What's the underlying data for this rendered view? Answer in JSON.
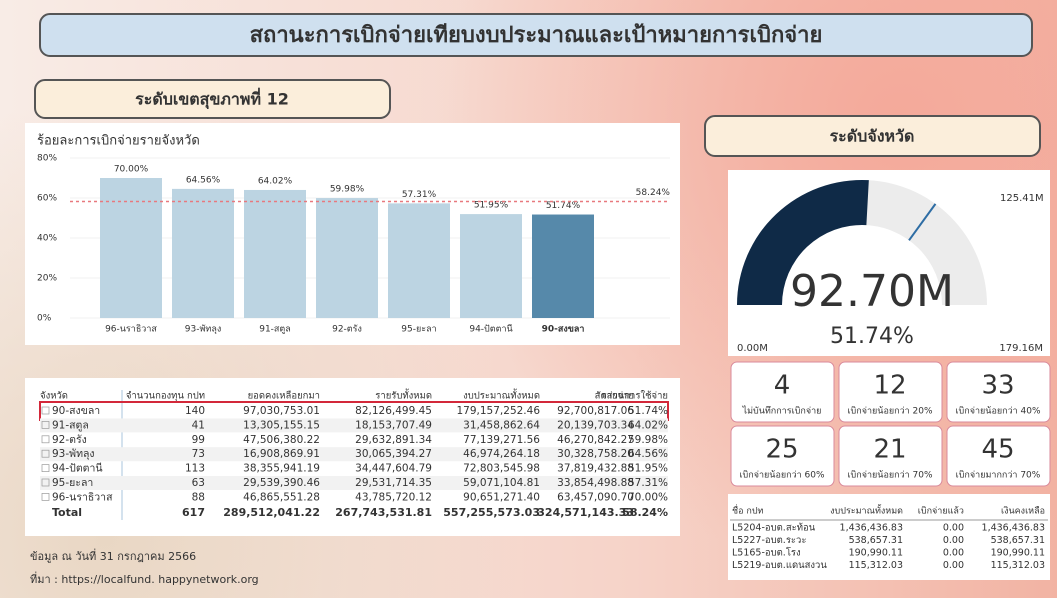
{
  "header": {
    "title": "สถานะการเบิกจ่ายเทียบงบประมาณและเป้าหมายการเบิกจ่าย",
    "region_label": "ระดับเขตสุขภาพที่ 12",
    "province_label": "ระดับจังหวัด"
  },
  "chart_data": [
    {
      "type": "bar",
      "title": "ร้อยละการเบิกจ่ายรายจังหวัด",
      "categories": [
        "96-นราธิวาส",
        "93-พัทลุง",
        "91-สตูล",
        "92-ตรัง",
        "95-ยะลา",
        "94-ปัตตานี",
        "90-สงขลา"
      ],
      "values": [
        70.0,
        64.56,
        64.02,
        59.98,
        57.31,
        51.95,
        51.74
      ],
      "value_labels": [
        "70.00%",
        "64.56%",
        "64.02%",
        "59.98%",
        "57.31%",
        "51.95%",
        "51.74%"
      ],
      "colors": [
        "#bcd4e2",
        "#bcd4e2",
        "#bcd4e2",
        "#bcd4e2",
        "#bcd4e2",
        "#bcd4e2",
        "#5689aa"
      ],
      "ylim": [
        0,
        80
      ],
      "yticks": [
        {
          "value": 0,
          "label": "0%"
        },
        {
          "value": 20,
          "label": "20%"
        },
        {
          "value": 40,
          "label": "40%"
        },
        {
          "value": 60,
          "label": "60%"
        },
        {
          "value": 80,
          "label": "80%"
        }
      ],
      "reference": {
        "value": 58.24,
        "label": "58.24%",
        "color": "#e8797e"
      }
    },
    {
      "type": "gauge",
      "values": [
        92.7
      ],
      "value_labels": [
        "92.70M"
      ],
      "ylim": [
        0,
        179.16
      ],
      "yticks": [
        {
          "value": 0,
          "label": "0.00M"
        },
        {
          "value": 179.16,
          "label": "179.16M"
        }
      ],
      "target": {
        "value": 125.41,
        "label": "125.41M"
      },
      "percent": {
        "value": 51.74,
        "label": "51.74%"
      },
      "color": "#0f2a47",
      "track_color": "#ececec",
      "target_color": "#2e6da4"
    }
  ],
  "cards": [
    {
      "value": "4",
      "label": "ไม่บันทึกการเบิกจ่าย"
    },
    {
      "value": "12",
      "label": "เบิกจ่ายน้อยกว่า 20%"
    },
    {
      "value": "33",
      "label": "เบิกจ่ายน้อยกว่า 40%"
    },
    {
      "value": "25",
      "label": "เบิกจ่ายน้อยกว่า 60%"
    },
    {
      "value": "21",
      "label": "เบิกจ่ายน้อยกว่า 70%"
    },
    {
      "value": "45",
      "label": "เบิกจ่ายมากกว่า 70%"
    }
  ],
  "table": {
    "columns": [
      "จังหวัด",
      "จำนวนกองทุน กปท",
      "ยอดคงเหลือยกมา",
      "รายรับทั้งหมด",
      "งบประมาณทั้งหมด",
      "รายจ่าย",
      "สัดส่วนการใช้จ่าย"
    ],
    "rows": [
      [
        "90-สงขลา",
        "140",
        "97,030,753.01",
        "82,126,499.45",
        "179,157,252.46",
        "92,700,817.06",
        "51.74%"
      ],
      [
        "91-สตูล",
        "41",
        "13,305,155.15",
        "18,153,707.49",
        "31,458,862.64",
        "20,139,703.34",
        "64.02%"
      ],
      [
        "92-ตรัง",
        "99",
        "47,506,380.22",
        "29,632,891.34",
        "77,139,271.56",
        "46,270,842.27",
        "59.98%"
      ],
      [
        "93-พัทลุง",
        "73",
        "16,908,869.91",
        "30,065,394.27",
        "46,974,264.18",
        "30,328,758.20",
        "64.56%"
      ],
      [
        "94-ปัตตานี",
        "113",
        "38,355,941.19",
        "34,447,604.79",
        "72,803,545.98",
        "37,819,432.88",
        "51.95%"
      ],
      [
        "95-ยะลา",
        "63",
        "29,539,390.46",
        "29,531,714.35",
        "59,071,104.81",
        "33,854,498.88",
        "57.31%"
      ],
      [
        "96-นราธิวาส",
        "88",
        "46,865,551.28",
        "43,785,720.12",
        "90,651,271.40",
        "63,457,090.70",
        "70.00%"
      ]
    ],
    "total": [
      "Total",
      "617",
      "289,512,041.22",
      "267,743,531.81",
      "557,255,573.03",
      "324,571,143.33",
      "58.24%"
    ]
  },
  "fund_table": {
    "columns": [
      "ชื่อ กปท",
      "งบประมาณทั้งหมด",
      "เบิกจ่ายแล้ว",
      "เงินคงเหลือ"
    ],
    "rows": [
      [
        "L5204-อบต.สะท้อน",
        "1,436,436.83",
        "0.00",
        "1,436,436.83"
      ],
      [
        "L5227-อบต.ระวะ",
        "538,657.31",
        "0.00",
        "538,657.31"
      ],
      [
        "L5165-อบต.โรง",
        "190,990.11",
        "0.00",
        "190,990.11"
      ],
      [
        "L5219-อบต.แดนสงวน",
        "115,312.03",
        "0.00",
        "115,312.03"
      ]
    ]
  },
  "footer": {
    "date": "ข้อมูล ณ วันที่ 31 กรกฎาคม 2566",
    "source": "ที่มา : https://localfund. happynetwork.org"
  }
}
